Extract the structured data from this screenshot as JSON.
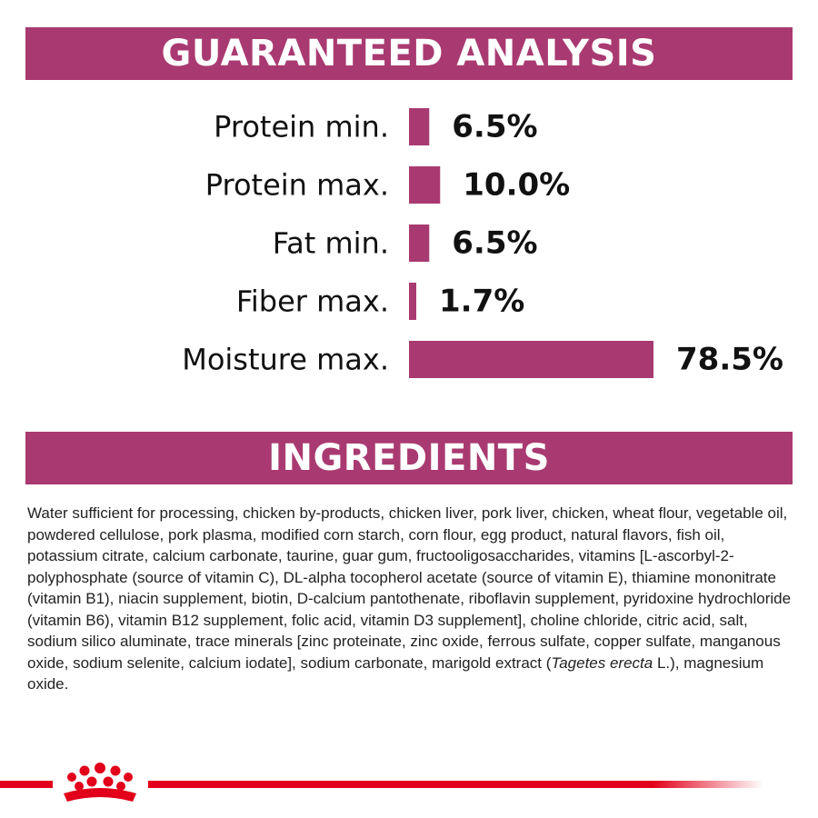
{
  "colors": {
    "accent": "#a93a71",
    "brand_red": "#e2001a"
  },
  "analysis": {
    "title": "GUARANTEED ANALYSIS"
  },
  "chart_data": {
    "type": "bar",
    "orientation": "horizontal",
    "title": "GUARANTEED ANALYSIS",
    "unit": "%",
    "categories": [
      "Protein min.",
      "Protein max.",
      "Fat min.",
      "Fiber max.",
      "Moisture max."
    ],
    "values": [
      6.5,
      10.0,
      6.5,
      1.7,
      78.5
    ],
    "value_labels": [
      "6.5%",
      "10.0%",
      "6.5%",
      "1.7%",
      "78.5%"
    ],
    "xlim": [
      0,
      78.5
    ],
    "grid": false,
    "legend": "none"
  },
  "ingredients": {
    "title": "INGREDIENTS",
    "text_before_italic": "Water sufficient for processing, chicken by-products, chicken liver, pork liver, chicken, wheat flour, vegetable oil, powdered cellulose, pork plasma, modified corn starch, corn flour, egg product, natural flavors, fish oil, potassium citrate, calcium carbonate, taurine, guar gum, fructooligosaccharides, vitamins [L-ascorbyl-2-polyphosphate (source of vitamin C), DL-alpha tocopherol acetate (source of vitamin E), thiamine mononitrate (vitamin B1), niacin supplement, biotin, D-calcium pantothenate, riboflavin supplement, pyridoxine hydrochloride (vitamin B6), vitamin B12 supplement, folic acid, vitamin D3 supplement], choline chloride, citric acid, salt, sodium silico aluminate, trace minerals [zinc proteinate, zinc oxide, ferrous sulfate, copper sulfate, manganous oxide, sodium selenite, calcium iodate], sodium carbonate, marigold extract (",
    "italic": "Tagetes erecta",
    "text_after_italic": " L.), magnesium oxide."
  },
  "footer": {
    "logo": "royal-canin-crown-logo"
  }
}
